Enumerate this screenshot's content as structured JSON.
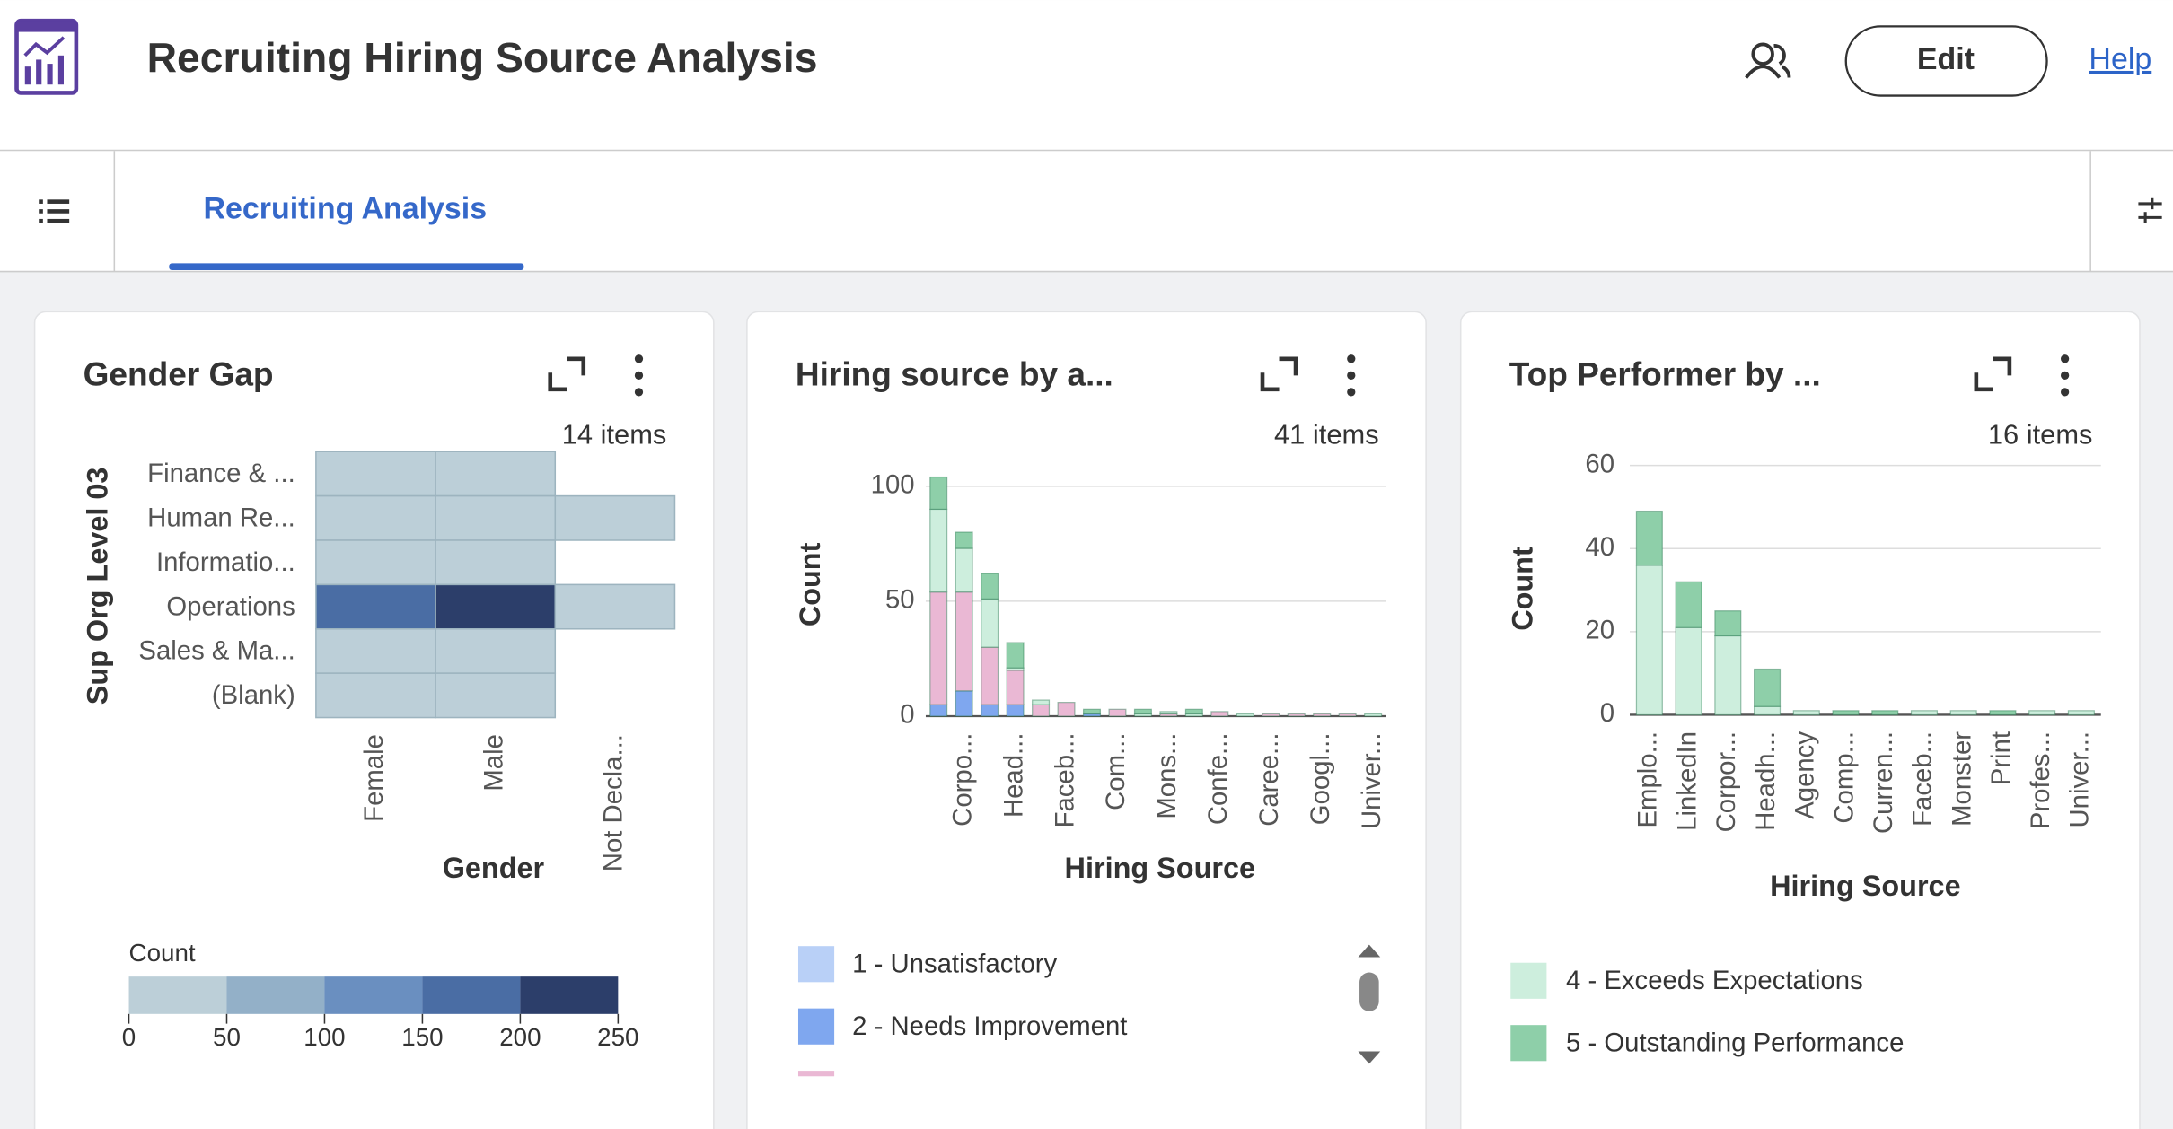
{
  "header": {
    "title": "Recruiting Hiring Source Analysis",
    "edit": "Edit",
    "help": "Help"
  },
  "tabs": {
    "active": "Recruiting Analysis"
  },
  "chart_data": [
    {
      "type": "heatmap",
      "title": "Gender Gap",
      "items_label": "14 items",
      "y_label": "Sup Org Level 03",
      "x_label": "Gender",
      "y_categories": [
        "Finance & ...",
        "Human Re...",
        "Informatio...",
        "Operations",
        "Sales & Ma...",
        "(Blank)"
      ],
      "x_categories": [
        "Female",
        "Male",
        "Not Decla..."
      ],
      "values": [
        [
          12,
          10,
          null
        ],
        [
          8,
          6,
          1
        ],
        [
          10,
          14,
          null
        ],
        [
          170,
          230,
          2
        ],
        [
          15,
          12,
          null
        ],
        [
          20,
          18,
          null
        ]
      ],
      "legend_title": "Count",
      "legend_ticks": [
        0,
        50,
        100,
        150,
        200,
        250
      ],
      "colors": [
        "#bccfd8",
        "#93b0c8",
        "#6a8fc0",
        "#4a6da4",
        "#2c3e6a"
      ]
    },
    {
      "type": "bar",
      "stacked": true,
      "title": "Hiring source by a...",
      "items_label": "41 items",
      "y_label": "Count",
      "x_label": "Hiring Source",
      "categories": [
        null,
        "Corpo...",
        null,
        "Head...",
        null,
        "Faceb...",
        null,
        "Com...",
        null,
        "Mons...",
        null,
        "Confe...",
        null,
        "Caree...",
        null,
        "Googl...",
        null,
        "Univer..."
      ],
      "ylim": [
        0,
        100
      ],
      "yticks": [
        0,
        50,
        100
      ],
      "grid": true,
      "series": [
        {
          "name": "1 - Unsatisfactory",
          "color": "#b9d0f7",
          "values": [
            0,
            0,
            0,
            0,
            0,
            0,
            0,
            0,
            0,
            0,
            0,
            0,
            0,
            0,
            0,
            0,
            0,
            0
          ]
        },
        {
          "name": "2 - Needs Improvement",
          "color": "#7fa7ef",
          "values": [
            5,
            11,
            5,
            5,
            0,
            0,
            1,
            0,
            0,
            0,
            0,
            0,
            0,
            0,
            0,
            0,
            0,
            0
          ]
        },
        {
          "color": "#eab8d4",
          "values": [
            49,
            43,
            25,
            15,
            5,
            6,
            0,
            3,
            0,
            1,
            0,
            2,
            0,
            1,
            1,
            1,
            1,
            0
          ]
        },
        {
          "color": "#cdeedd",
          "values": [
            36,
            19,
            21,
            1,
            2,
            0,
            0,
            0,
            1,
            1,
            1,
            0,
            1,
            0,
            0,
            0,
            0,
            1
          ]
        },
        {
          "color": "#8ecfa9",
          "values": [
            14,
            7,
            11,
            11,
            0,
            0,
            2,
            0,
            2,
            0,
            2,
            0,
            0,
            0,
            0,
            0,
            0,
            0
          ]
        }
      ]
    },
    {
      "type": "bar",
      "stacked": true,
      "title": "Top Performer by ...",
      "items_label": "16 items",
      "y_label": "Count",
      "x_label": "Hiring Source",
      "categories": [
        "Emplo...",
        "LinkedIn",
        "Corpor...",
        "Headh...",
        "Agency",
        "Comp...",
        "Curren...",
        "Faceb...",
        "Monster",
        "Print",
        "Profes...",
        "Univer..."
      ],
      "ylim": [
        0,
        60
      ],
      "yticks": [
        0,
        20,
        40,
        60
      ],
      "grid": true,
      "series": [
        {
          "name": "4 - Exceeds Expectations",
          "color": "#cdeedd",
          "values": [
            36,
            21,
            19,
            2,
            1,
            0,
            0,
            1,
            1,
            0,
            1,
            1
          ]
        },
        {
          "name": "5 - Outstanding Performance",
          "color": "#8ecfa9",
          "values": [
            13,
            11,
            6,
            9,
            0,
            1,
            1,
            0,
            0,
            1,
            0,
            0
          ]
        }
      ]
    }
  ]
}
